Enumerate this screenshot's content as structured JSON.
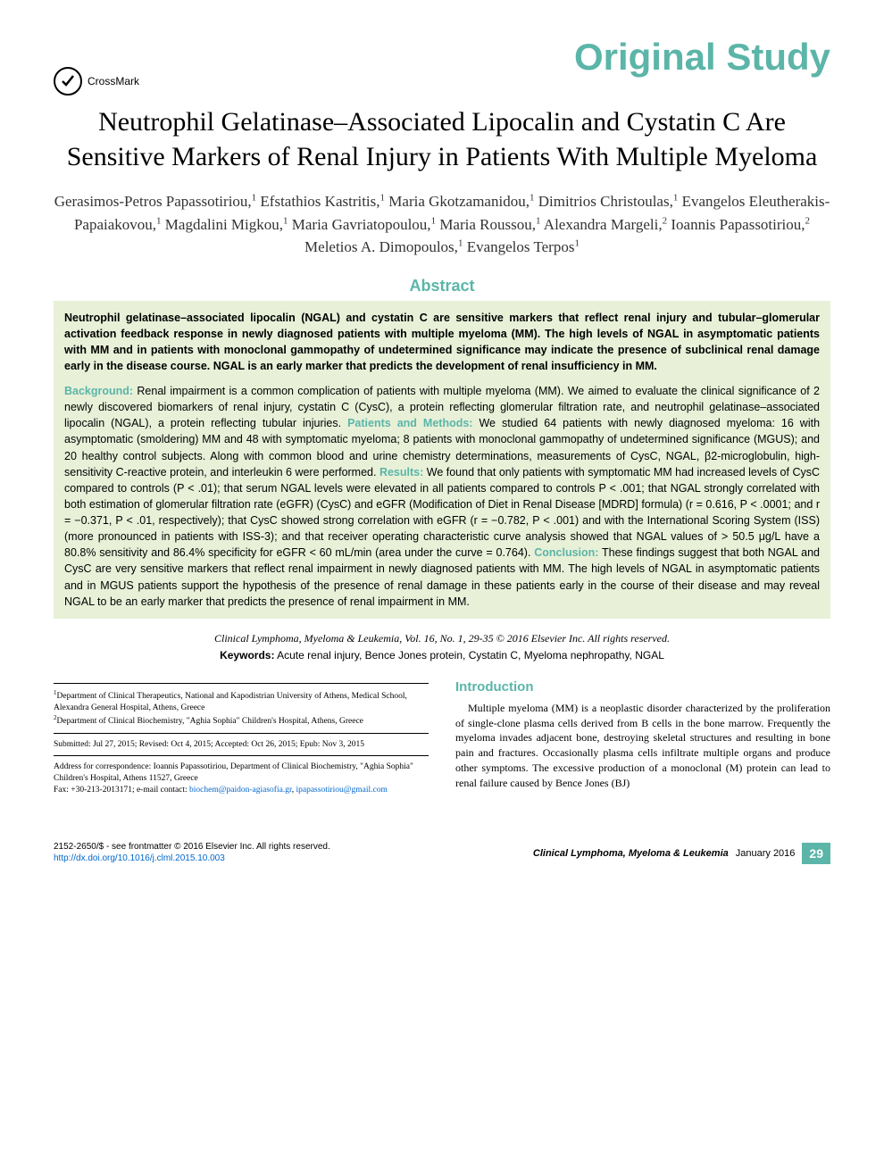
{
  "header": {
    "section_label": "Original Study",
    "crossmark_label": "CrossMark",
    "section_color": "#5bb5a8"
  },
  "title": "Neutrophil Gelatinase–Associated Lipocalin and Cystatin C Are Sensitive Markers of Renal Injury in Patients With Multiple Myeloma",
  "authors_html": "Gerasimos-Petros Papassotiriou,<sup>1</sup> Efstathios Kastritis,<sup>1</sup> Maria Gkotzamanidou,<sup>1</sup> Dimitrios Christoulas,<sup>1</sup> Evangelos Eleutherakis-Papaiakovou,<sup>1</sup> Magdalini Migkou,<sup>1</sup> Maria Gavriatopoulou,<sup>1</sup> Maria Roussou,<sup>1</sup> Alexandra Margeli,<sup>2</sup> Ioannis Papassotiriou,<sup>2</sup> Meletios A. Dimopoulos,<sup>1</sup> Evangelos Terpos<sup>1</sup>",
  "abstract": {
    "heading": "Abstract",
    "highlight": "Neutrophil gelatinase–associated lipocalin (NGAL) and cystatin C are sensitive markers that reflect renal injury and tubular–glomerular activation feedback response in newly diagnosed patients with multiple myeloma (MM). The high levels of NGAL in asymptomatic patients with MM and in patients with monoclonal gammopathy of undetermined significance may indicate the presence of subclinical renal damage early in the disease course. NGAL is an early marker that predicts the development of renal insufficiency in MM.",
    "background_label": "Background:",
    "background": " Renal impairment is a common complication of patients with multiple myeloma (MM). We aimed to evaluate the clinical significance of 2 newly discovered biomarkers of renal injury, cystatin C (CysC), a protein reflecting glomerular filtration rate, and neutrophil gelatinase–associated lipocalin (NGAL), a protein reflecting tubular injuries. ",
    "methods_label": "Patients and Methods:",
    "methods": " We studied 64 patients with newly diagnosed myeloma: 16 with asymptomatic (smoldering) MM and 48 with symptomatic myeloma; 8 patients with monoclonal gammopathy of undetermined significance (MGUS); and 20 healthy control subjects. Along with common blood and urine chemistry determinations, measurements of CysC, NGAL, β2-microglobulin, high-sensitivity C-reactive protein, and interleukin 6 were performed. ",
    "results_label": "Results:",
    "results": " We found that only patients with symptomatic MM had increased levels of CysC compared to controls (P < .01); that serum NGAL levels were elevated in all patients compared to controls P < .001; that NGAL strongly correlated with both estimation of glomerular filtration rate (eGFR) (CysC) and eGFR (Modification of Diet in Renal Disease [MDRD] formula) (r = 0.616, P < .0001; and r = −0.371, P < .01, respectively); that CysC showed strong correlation with eGFR (r = −0.782, P < .001) and with the International Scoring System (ISS) (more pronounced in patients with ISS-3); and that receiver operating characteristic curve analysis showed that NGAL values of > 50.5 μg/L have a 80.8% sensitivity and 86.4% specificity for eGFR < 60 mL/min (area under the curve = 0.764). ",
    "conclusion_label": "Conclusion:",
    "conclusion": " These findings suggest that both NGAL and CysC are very sensitive markers that reflect renal impairment in newly diagnosed patients with MM. The high levels of NGAL in asymptomatic patients and in MGUS patients support the hypothesis of the presence of renal damage in these patients early in the course of their disease and may reveal NGAL to be an early marker that predicts the presence of renal impairment in MM."
  },
  "citation": "Clinical Lymphoma, Myeloma & Leukemia, Vol. 16, No. 1, 29-35 © 2016 Elsevier Inc. All rights reserved.",
  "keywords": {
    "label": "Keywords:",
    "text": " Acute renal injury, Bence Jones protein, Cystatin C, Myeloma nephropathy, NGAL"
  },
  "affiliations": {
    "aff1": "Department of Clinical Therapeutics, National and Kapodistrian University of Athens, Medical School, Alexandra General Hospital, Athens, Greece",
    "aff2": "Department of Clinical Biochemistry, \"Aghia Sophia\" Children's Hospital, Athens, Greece",
    "submitted": "Submitted: Jul 27, 2015; Revised: Oct 4, 2015; Accepted: Oct 26, 2015; Epub: Nov 3, 2015",
    "correspondence": "Address for correspondence: Ioannis Papassotiriou, Department of Clinical Biochemistry, \"Aghia Sophia\" Children's Hospital, Athens 11527, Greece",
    "fax_line": "Fax: +30-213-2013171; e-mail contact: ",
    "email1": "biochem@paidon-agiasofia.gr",
    "email_sep": ", ",
    "email2": "ipapassotiriou@gmail.com"
  },
  "introduction": {
    "heading": "Introduction",
    "text": "Multiple myeloma (MM) is a neoplastic disorder characterized by the proliferation of single-clone plasma cells derived from B cells in the bone marrow. Frequently the myeloma invades adjacent bone, destroying skeletal structures and resulting in bone pain and fractures. Occasionally plasma cells infiltrate multiple organs and produce other symptoms. The excessive production of a monoclonal (M) protein can lead to renal failure caused by Bence Jones (BJ)"
  },
  "footer": {
    "copyright": "2152-2650/$ - see frontmatter © 2016 Elsevier Inc. All rights reserved.",
    "doi": "http://dx.doi.org/10.1016/j.clml.2015.10.003",
    "journal": "Clinical Lymphoma, Myeloma & Leukemia",
    "date": "January 2016",
    "page": "29"
  },
  "colors": {
    "accent": "#5bb5a8",
    "highlight_bg": "#e8f0d8",
    "link": "#0066cc"
  }
}
